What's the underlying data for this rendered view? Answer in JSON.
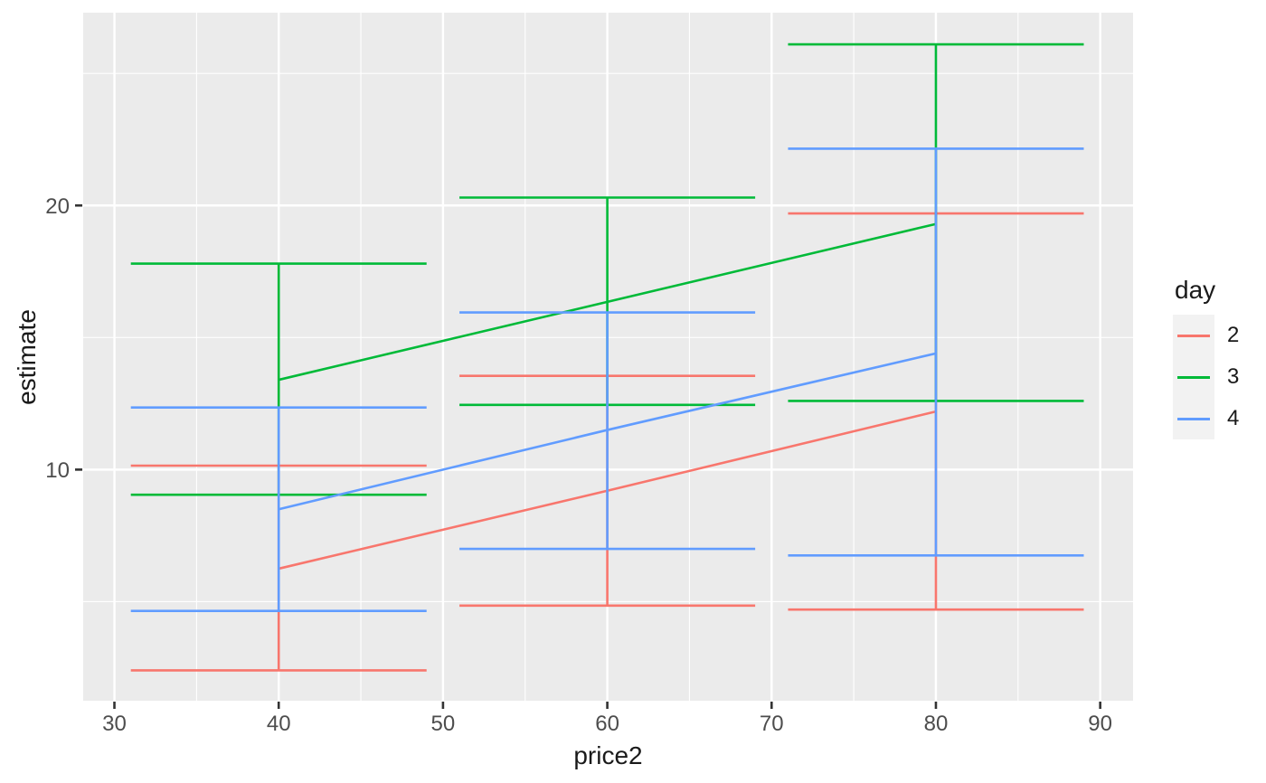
{
  "style": {
    "background": "#FFFFFF",
    "panel_background": "#EBEBEB",
    "grid_color": "#FFFFFF",
    "tick_mark_color": "#333333",
    "tick_label_color": "#4D4D4D",
    "axis_title_color": "#1A1A1A",
    "legend_key_background": "#F2F2F2"
  },
  "chart_data": {
    "type": "line",
    "subtype": "point-estimates-with-error-bars",
    "title": "",
    "xlabel": "price2",
    "ylabel": "estimate",
    "x": [
      40,
      60,
      80
    ],
    "whisker_halfwidth": 9,
    "series": [
      {
        "name": "2",
        "color": "#F8766D",
        "estimate": [
          6.25,
          9.2,
          12.2
        ],
        "lower": [
          2.4,
          4.85,
          4.7
        ],
        "upper": [
          10.15,
          13.55,
          19.7
        ]
      },
      {
        "name": "3",
        "color": "#00BA38",
        "estimate": [
          13.4,
          16.35,
          19.3
        ],
        "lower": [
          9.05,
          12.45,
          12.6
        ],
        "upper": [
          17.8,
          20.3,
          26.1
        ]
      },
      {
        "name": "4",
        "color": "#619CFF",
        "estimate": [
          8.5,
          11.5,
          14.4
        ],
        "lower": [
          4.65,
          7.0,
          6.75
        ],
        "upper": [
          12.35,
          15.95,
          22.15
        ]
      }
    ],
    "x_ticks": [
      30,
      40,
      50,
      60,
      70,
      80,
      90
    ],
    "y_ticks": [
      10,
      20
    ],
    "x_minor_gridlines": [
      35,
      45,
      55,
      65,
      75,
      85
    ],
    "y_minor_gridlines": [
      5,
      15,
      25
    ],
    "xlim": [
      28.1,
      92.0
    ],
    "ylim": [
      1.25,
      27.3
    ],
    "grid": true,
    "legend": {
      "title": "day",
      "entries": [
        "2",
        "3",
        "4"
      ],
      "position": "right"
    }
  }
}
